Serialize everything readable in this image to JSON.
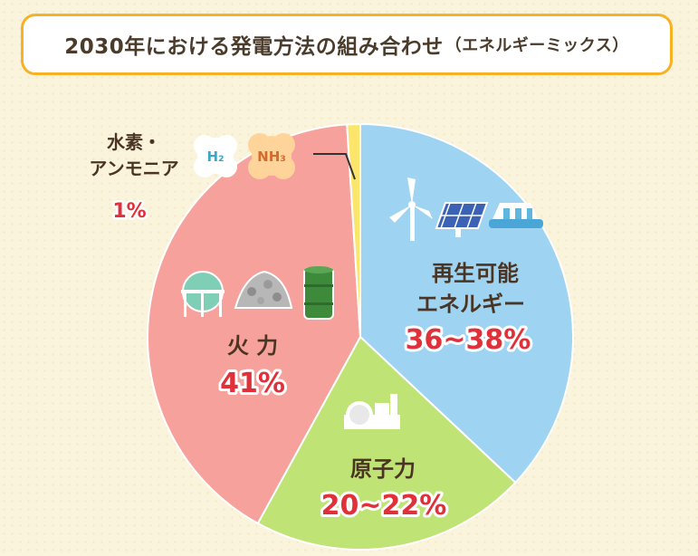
{
  "title": {
    "main": "2030年における発電方法の組み合わせ",
    "sub": "（エネルギーミックス）"
  },
  "chart_data": {
    "type": "pie",
    "title": "2030年における発電方法の組み合わせ（エネルギーミックス）",
    "start": "top (12 o'clock), clockwise",
    "slices": [
      {
        "id": "renewable",
        "lines": [
          "再生可能",
          "エネルギー"
        ],
        "value_label": "36~38%",
        "low": 36,
        "high": 38,
        "value": 37,
        "color": "#9ed3f1"
      },
      {
        "id": "nuclear",
        "lines": [
          "原子力"
        ],
        "value_label": "20~22%",
        "low": 20,
        "high": 22,
        "value": 21,
        "color": "#bfe375"
      },
      {
        "id": "thermal",
        "lines": [
          "火 力"
        ],
        "value_label": "41%",
        "value": 41,
        "color": "#f6a19b"
      },
      {
        "id": "hydrogen",
        "lines": [
          "水素・",
          "アンモニア"
        ],
        "value_label": "1%",
        "value": 1,
        "color": "#fbe66b"
      }
    ]
  },
  "icons": {
    "h2": "H₂",
    "nh3": "NH₃"
  }
}
